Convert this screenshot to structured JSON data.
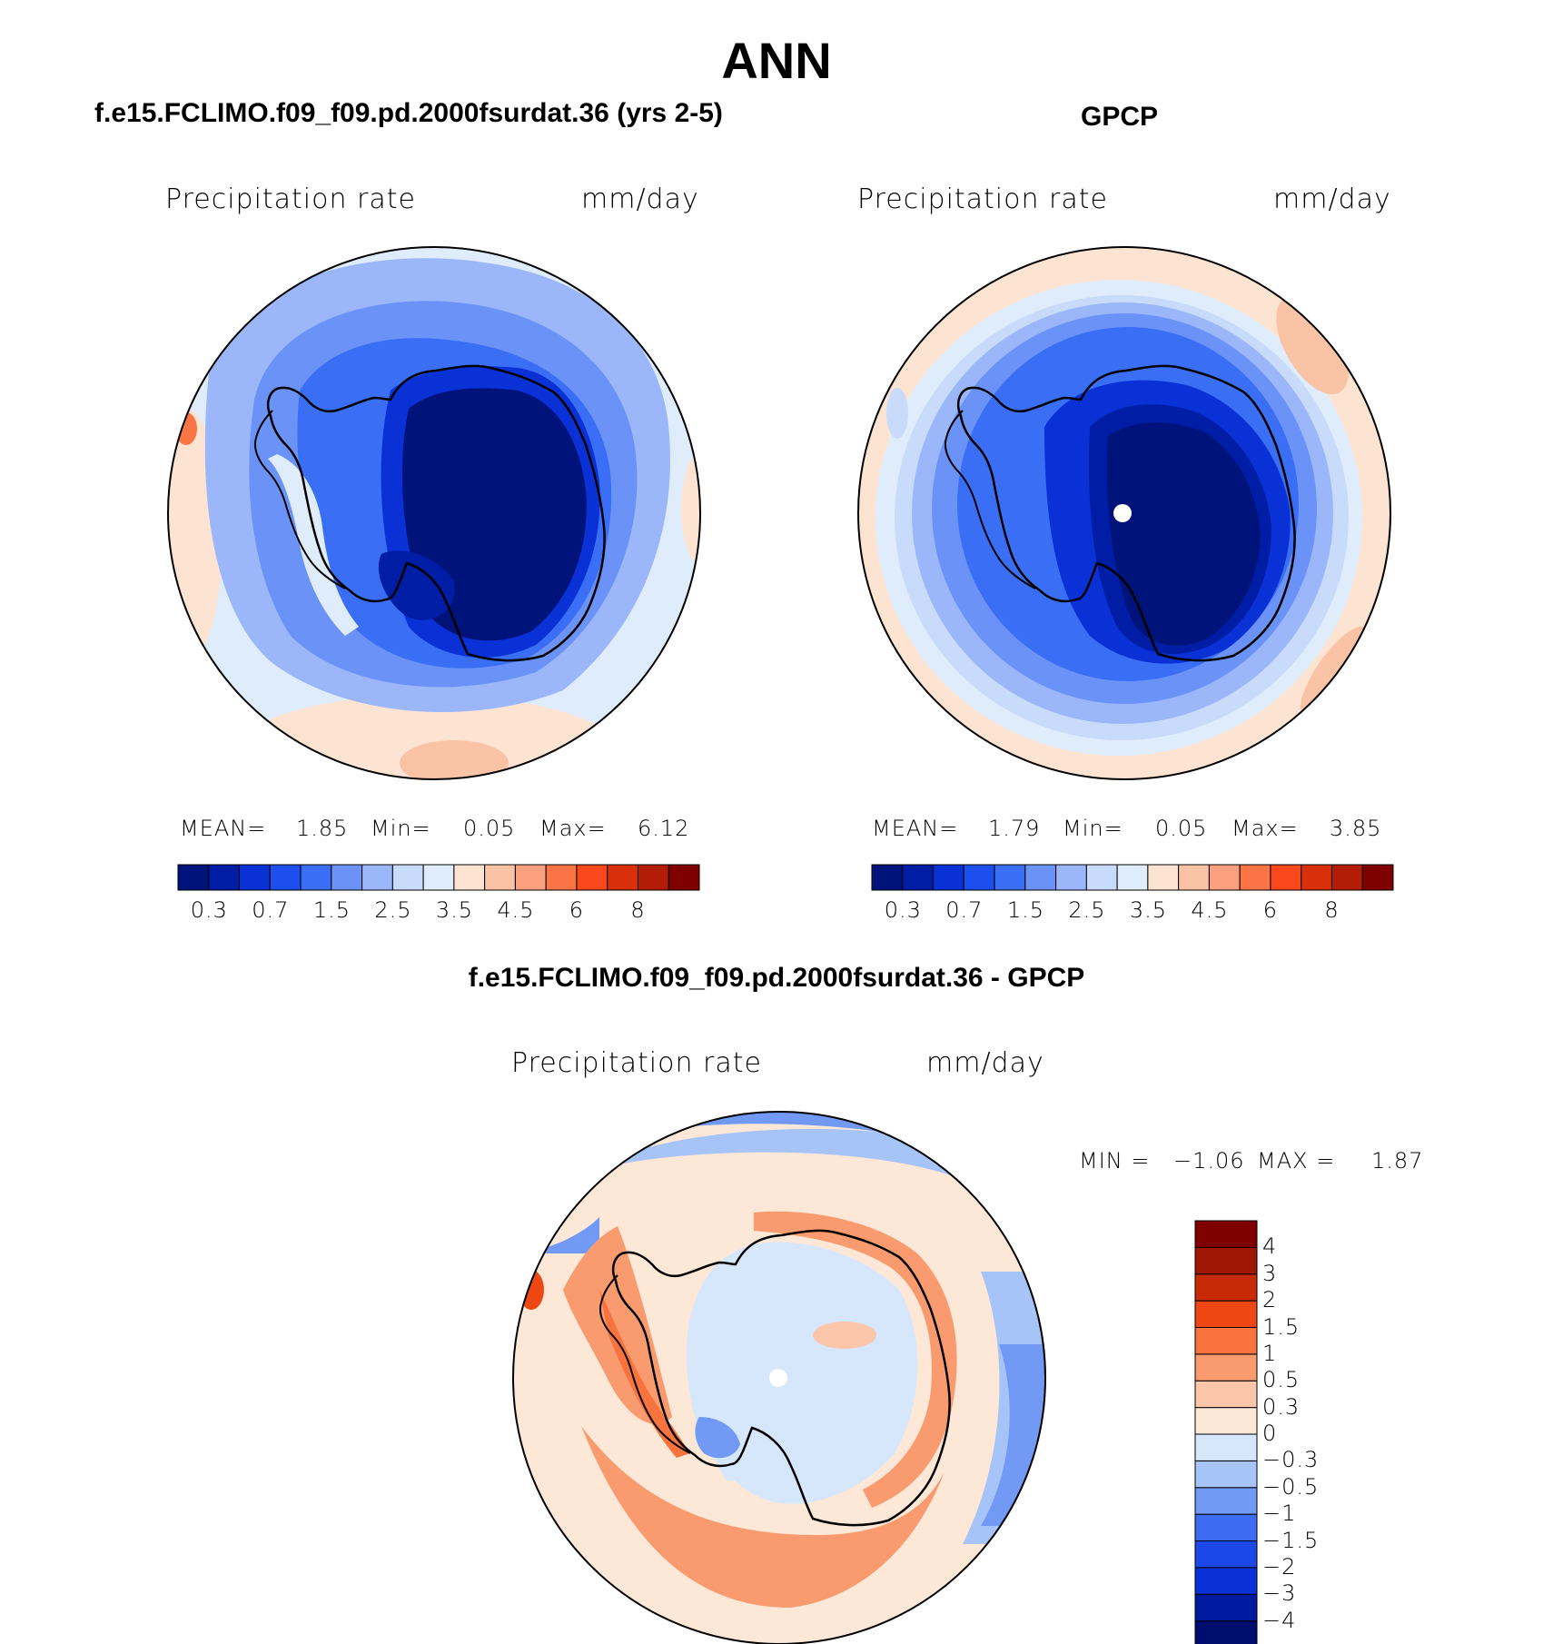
{
  "title": "ANN",
  "panels": [
    {
      "title": "f.e15.FCLIMO.f09_f09.pd.2000fsurdat.36 (yrs 2-5)",
      "variable": "Precipitation rate",
      "units": "mm/day",
      "stats": {
        "mean_label": "MEAN=",
        "mean": "1.85",
        "min_label": "Min=",
        "min": "0.05",
        "max_label": "Max=",
        "max": "6.12"
      },
      "colorbar_labels": [
        "0.3",
        "0.7",
        "1.5",
        "2.5",
        "3.5",
        "4.5",
        "6",
        "8"
      ]
    },
    {
      "title": "GPCP",
      "variable": "Precipitation rate",
      "units": "mm/day",
      "stats": {
        "mean_label": "MEAN=",
        "mean": "1.79",
        "min_label": "Min=",
        "min": "0.05",
        "max_label": "Max=",
        "max": "3.85"
      },
      "colorbar_labels": [
        "0.3",
        "0.7",
        "1.5",
        "2.5",
        "3.5",
        "4.5",
        "6",
        "8"
      ]
    },
    {
      "title": "f.e15.FCLIMO.f09_f09.pd.2000fsurdat.36 - GPCP",
      "variable": "Precipitation rate",
      "units": "mm/day",
      "stats": {
        "min_label": "MIN =",
        "min": "−1.06",
        "max_label": "MAX =",
        "max": "1.87"
      },
      "colorbar_labels": [
        "4",
        "3",
        "2",
        "1.5",
        "1",
        "0.5",
        "0.3",
        "0",
        "−0.3",
        "−0.5",
        "−1",
        "−1.5",
        "−2",
        "−3",
        "−4"
      ]
    }
  ],
  "colors": {
    "field_palette": [
      "#00137a",
      "#001da6",
      "#0a31d6",
      "#1d4fef",
      "#3a6ef5",
      "#6b93f7",
      "#9bb7f9",
      "#c8dbfa",
      "#dfecfb",
      "#fde4d2",
      "#fbc3a6",
      "#fba07e",
      "#fa7446",
      "#f9481c",
      "#d92f0b",
      "#b31d07",
      "#800000"
    ],
    "diff_palette": [
      "#000c6e",
      "#001ba0",
      "#0a31d6",
      "#1c47e9",
      "#3d6cf0",
      "#729af5",
      "#a7c4f9",
      "#d6e6fb",
      "#fde7d7",
      "#fbc6a9",
      "#f99a6f",
      "#f8733e",
      "#ef4714",
      "#c82a08",
      "#a01805",
      "#800000"
    ],
    "pole_marker": "#ffffff",
    "coastline": "#000000"
  }
}
